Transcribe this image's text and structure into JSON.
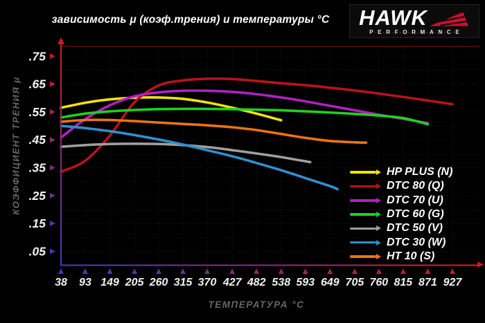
{
  "title": "зависимость μ (коэф.трения) и температуры °C",
  "logo": {
    "brand": "HAWK",
    "sub": "PERFORMANCE",
    "accent": "#c8102e"
  },
  "chart_data": {
    "type": "line",
    "title": "зависимость μ (коэф.трения) и температуры °C",
    "xlabel": "ТЕМПЕРАТУРА °C",
    "ylabel": "КОЭФФИЦИЕНТ ТРЕНИЯ μ",
    "x_ticks": [
      38,
      93,
      149,
      205,
      260,
      315,
      370,
      427,
      482,
      538,
      593,
      649,
      705,
      760,
      815,
      871,
      927
    ],
    "y_ticks": [
      0.05,
      0.15,
      0.25,
      0.35,
      0.45,
      0.55,
      0.65,
      0.75
    ],
    "y_tick_labels": [
      ".05",
      ".15",
      ".25",
      ".35",
      ".45",
      ".55",
      ".65",
      ".75"
    ],
    "xlim": [
      38,
      995
    ],
    "ylim": [
      0,
      0.8
    ],
    "grid": "dotted",
    "grid_color": "#232323",
    "top_border_color": "#6e1216",
    "axis_colors": {
      "red_end": "#cf1822",
      "blue_end": "#4038c2"
    },
    "legend_position": "inside-right-bottom",
    "series": [
      {
        "name": "HP PLUS (N)",
        "color": "#f2e303",
        "points": [
          [
            38,
            0.565
          ],
          [
            93,
            0.583
          ],
          [
            149,
            0.595
          ],
          [
            205,
            0.601
          ],
          [
            260,
            0.602
          ],
          [
            315,
            0.597
          ],
          [
            370,
            0.584
          ],
          [
            427,
            0.565
          ],
          [
            482,
            0.544
          ],
          [
            538,
            0.52
          ]
        ]
      },
      {
        "name": "DTC 80 (Q)",
        "color": "#b8131b",
        "points": [
          [
            38,
            0.335
          ],
          [
            93,
            0.375
          ],
          [
            149,
            0.465
          ],
          [
            205,
            0.585
          ],
          [
            260,
            0.645
          ],
          [
            315,
            0.663
          ],
          [
            370,
            0.669
          ],
          [
            427,
            0.668
          ],
          [
            482,
            0.661
          ],
          [
            538,
            0.653
          ],
          [
            593,
            0.646
          ],
          [
            649,
            0.637
          ],
          [
            705,
            0.627
          ],
          [
            760,
            0.616
          ],
          [
            815,
            0.604
          ],
          [
            871,
            0.591
          ],
          [
            927,
            0.578
          ]
        ]
      },
      {
        "name": "DTC 70 (U)",
        "color": "#b31fc4",
        "points": [
          [
            38,
            0.458
          ],
          [
            93,
            0.524
          ],
          [
            149,
            0.574
          ],
          [
            205,
            0.606
          ],
          [
            260,
            0.62
          ],
          [
            315,
            0.626
          ],
          [
            370,
            0.626
          ],
          [
            427,
            0.622
          ],
          [
            482,
            0.614
          ],
          [
            538,
            0.602
          ],
          [
            593,
            0.588
          ],
          [
            649,
            0.572
          ],
          [
            705,
            0.556
          ],
          [
            760,
            0.54
          ],
          [
            815,
            0.525
          ],
          [
            871,
            0.51
          ]
        ]
      },
      {
        "name": "DTC 60 (G)",
        "color": "#1fd11f",
        "points": [
          [
            38,
            0.53
          ],
          [
            93,
            0.544
          ],
          [
            149,
            0.552
          ],
          [
            205,
            0.557
          ],
          [
            260,
            0.56
          ],
          [
            315,
            0.561
          ],
          [
            370,
            0.561
          ],
          [
            427,
            0.56
          ],
          [
            482,
            0.558
          ],
          [
            538,
            0.556
          ],
          [
            593,
            0.552
          ],
          [
            649,
            0.548
          ],
          [
            705,
            0.543
          ],
          [
            760,
            0.537
          ],
          [
            815,
            0.528
          ],
          [
            871,
            0.506
          ]
        ]
      },
      {
        "name": "DTC 50 (V)",
        "color": "#9f9f9f",
        "points": [
          [
            38,
            0.425
          ],
          [
            93,
            0.431
          ],
          [
            149,
            0.435
          ],
          [
            205,
            0.436
          ],
          [
            260,
            0.435
          ],
          [
            315,
            0.431
          ],
          [
            370,
            0.424
          ],
          [
            427,
            0.413
          ],
          [
            482,
            0.401
          ],
          [
            538,
            0.388
          ],
          [
            604,
            0.37
          ]
        ]
      },
      {
        "name": "DTC 30 (W)",
        "color": "#2f8fd0",
        "points": [
          [
            38,
            0.5
          ],
          [
            93,
            0.492
          ],
          [
            149,
            0.481
          ],
          [
            205,
            0.467
          ],
          [
            260,
            0.451
          ],
          [
            315,
            0.433
          ],
          [
            370,
            0.413
          ],
          [
            427,
            0.391
          ],
          [
            482,
            0.367
          ],
          [
            538,
            0.341
          ],
          [
            593,
            0.313
          ],
          [
            649,
            0.284
          ],
          [
            666,
            0.273
          ]
        ]
      },
      {
        "name": "HT 10 (S)",
        "color": "#ee7311",
        "points": [
          [
            38,
            0.515
          ],
          [
            93,
            0.521
          ],
          [
            149,
            0.521
          ],
          [
            205,
            0.517
          ],
          [
            260,
            0.512
          ],
          [
            315,
            0.507
          ],
          [
            370,
            0.502
          ],
          [
            427,
            0.495
          ],
          [
            482,
            0.485
          ],
          [
            538,
            0.471
          ],
          [
            593,
            0.457
          ],
          [
            649,
            0.446
          ],
          [
            705,
            0.441
          ],
          [
            731,
            0.44
          ]
        ]
      }
    ]
  }
}
